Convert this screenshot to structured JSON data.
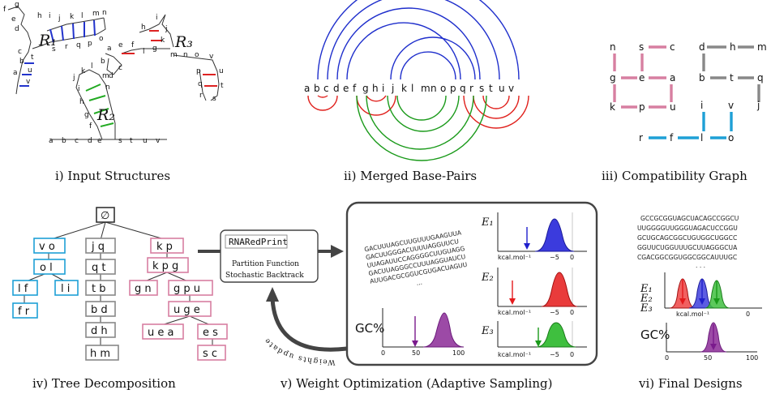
{
  "captions": {
    "c1": "i) Input Structures",
    "c2": "ii) Merged Base-Pairs",
    "c3": "iii) Compatibility Graph",
    "c4": "iv) Tree Decomposition",
    "c5": "v) Weight Optimization (Adaptive Sampling)",
    "c6": "vi) Final Designs"
  },
  "structures": {
    "r1": "R₁",
    "r2": "R₂",
    "r3": "R₃"
  },
  "merged_letters": [
    "a",
    "b",
    "c",
    "d",
    "e",
    "f",
    "g",
    "h",
    "i",
    "j",
    "k",
    "l",
    "m",
    "n",
    "o",
    "p",
    "q",
    "r",
    "s",
    "t",
    "u",
    "v"
  ],
  "tree": {
    "root": "∅",
    "nodes": [
      "v o",
      "o l",
      "l f",
      "l i",
      "f r",
      "j q",
      "q t",
      "t b",
      "b d",
      "d h",
      "h m",
      "k p",
      "k p g",
      "g n",
      "g p u",
      "u g e",
      "u e a",
      "e s",
      "s c"
    ]
  },
  "optimizer": {
    "tool_name": "RNARedPrint",
    "line1": "Partition Function",
    "line2": "Stochastic Backtrack",
    "feedback": "Weights update",
    "sequences": [
      "GACUUUAGCUUGUUUGAAGUUA",
      "GACUUGGGACUUUUAGGUUCU",
      "UUAGAUUCCAGGGGCUUGUAGG",
      "GACUUAGGGCCUUUAGGUAUCU",
      "AUUGACGCGGUCGUGACUAGUU",
      "..."
    ],
    "gc_label": "GC%",
    "gc_ticks": [
      "0",
      "50",
      "100"
    ],
    "energy_labels": [
      "E₁",
      "E₂",
      "E₃"
    ],
    "energy_unit": "kcal.mol⁻¹",
    "energy_ticks": [
      "−5",
      "0"
    ]
  },
  "final": {
    "sequences": [
      "GCCGCGGUAGCUACAGCCGGCU",
      "UUGGGGUUGGGUAGACUCCGGU",
      "GCUGCAGCGGCUGUGGCUGGCC",
      "GGUUCUGGUUUGCUUAGGGCUA",
      "CGACGGCGGUGGCGGCAUUUGC",
      ". . ."
    ],
    "energy_labels": [
      "E₁",
      "E₂",
      "E₃"
    ],
    "energy_unit": "kcal.mol⁻¹",
    "energy_tick": "0",
    "gc_label": "GC%",
    "gc_ticks": [
      "0",
      "50",
      "100"
    ]
  },
  "colors": {
    "red": "#e41a1c",
    "blue": "#1f1fcc",
    "green": "#1a9a1a",
    "pink": "#d77fa1",
    "gray": "#888888",
    "cyan": "#1ea0d6",
    "purple": "#7a1a8c"
  }
}
